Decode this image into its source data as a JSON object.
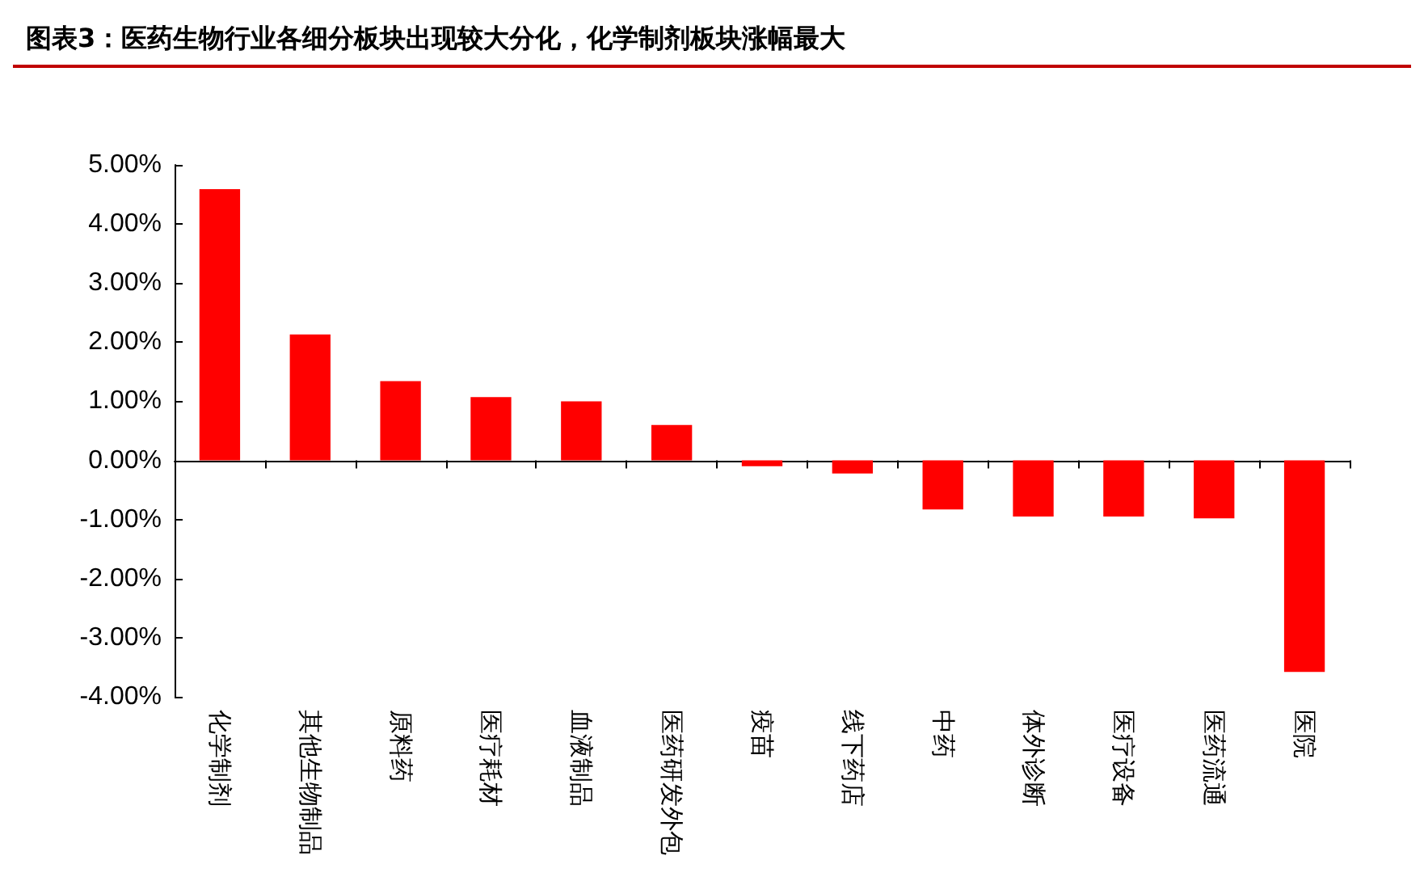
{
  "chart_data": {
    "type": "bar",
    "title": "图表3：医药生物行业各细分板块出现较大分化，化学制剂板块涨幅最大",
    "categories": [
      "化学制剂",
      "其他生物制品",
      "原料药",
      "医疗耗材",
      "血液制品",
      "医药研发外包",
      "疫苗",
      "线下药店",
      "中药",
      "体外诊断",
      "医疗设备",
      "医药流通",
      "医院"
    ],
    "values": [
      4.59,
      2.13,
      1.34,
      1.07,
      1.0,
      0.6,
      -0.1,
      -0.22,
      -0.83,
      -0.95,
      -0.95,
      -0.98,
      -3.58
    ],
    "color": "#ff0000",
    "ylim": [
      -4,
      5
    ],
    "yticks": [
      {
        "value": -4,
        "label": "-4.00%"
      },
      {
        "value": -3,
        "label": "-3.00%"
      },
      {
        "value": -2,
        "label": "-2.00%"
      },
      {
        "value": -1,
        "label": "-1.00%"
      },
      {
        "value": 0,
        "label": "0.00%"
      },
      {
        "value": 1,
        "label": "1.00%"
      },
      {
        "value": 2,
        "label": "2.00%"
      },
      {
        "value": 3,
        "label": "3.00%"
      },
      {
        "value": 4,
        "label": "4.00%"
      },
      {
        "value": 5,
        "label": "5.00%"
      }
    ]
  }
}
